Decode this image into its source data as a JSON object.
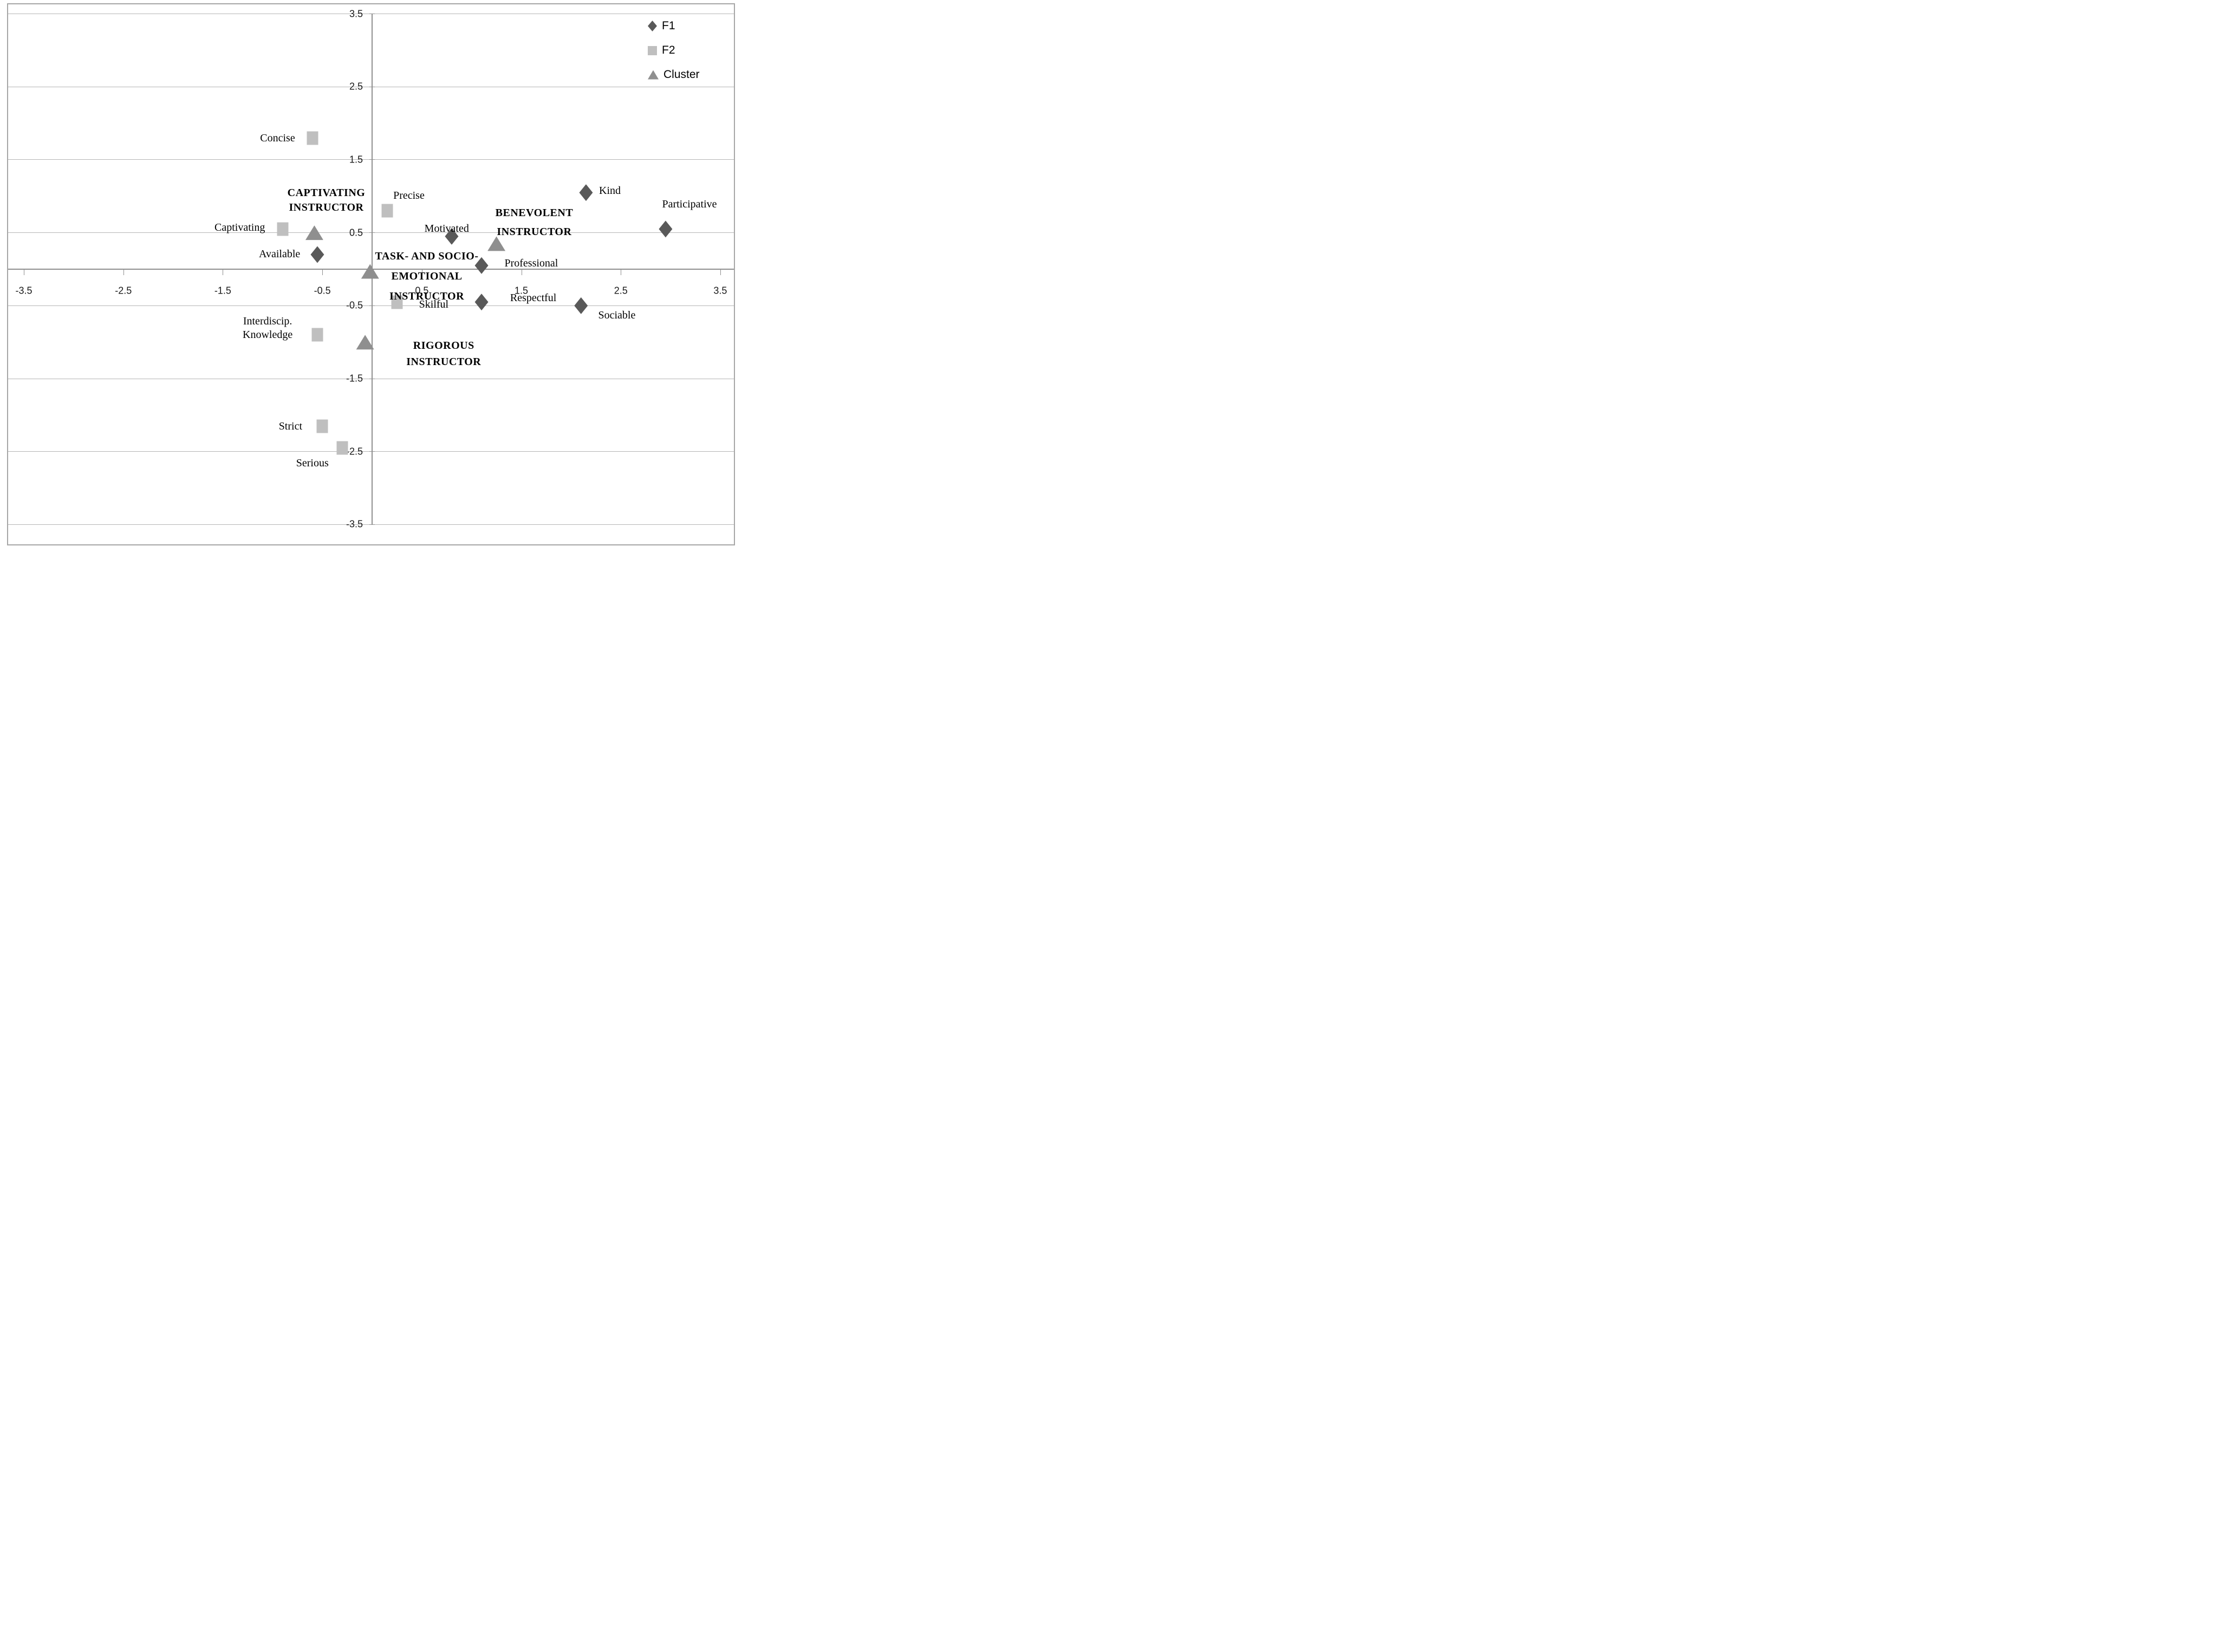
{
  "chart_data": {
    "type": "scatter",
    "title": "",
    "xlabel": "",
    "ylabel": "",
    "xlim": [
      -3.5,
      3.5
    ],
    "ylim": [
      -3.5,
      3.5
    ],
    "xtick_labels": [
      "-3.5",
      "-2.5",
      "-1.5",
      "-0.5",
      "0.5",
      "1.5",
      "2.5",
      "3.5"
    ],
    "ytick_labels": [
      "3.5",
      "2.5",
      "1.5",
      "0.5",
      "-0.5",
      "-1.5",
      "-2.5",
      "-3.5"
    ],
    "grid": "horizontal-only",
    "colors": {
      "f1": "#595959",
      "f2": "#bfbfbf",
      "cluster": "#8f8f8f",
      "gridline": "#b5b5b5",
      "axis": "#8f8f8f",
      "text": "#000000"
    },
    "legend": {
      "position": "top-right"
    },
    "series": [
      {
        "name": "F1",
        "marker": "diamond",
        "color": "#595959",
        "points": [
          {
            "label": "Available",
            "x": -0.55,
            "y": 0.2,
            "label_x": -0.93,
            "label_y": 0.21
          },
          {
            "label": "Kind",
            "x": 2.15,
            "y": 1.05,
            "label_x": 2.39,
            "label_y": 1.08
          },
          {
            "label": "Participative",
            "x": 2.95,
            "y": 0.55,
            "label_x": 3.19,
            "label_y": 0.89
          },
          {
            "label": "Motivated",
            "x": 0.8,
            "y": 0.45,
            "label_x": 0.75,
            "label_y": 0.56
          },
          {
            "label": "Professional",
            "x": 1.1,
            "y": 0.05,
            "label_x": 1.6,
            "label_y": 0.08
          },
          {
            "label": "Respectful",
            "x": 1.1,
            "y": -0.45,
            "label_x": 1.62,
            "label_y": -0.39
          },
          {
            "label": "Sociable",
            "x": 2.1,
            "y": -0.5,
            "label_x": 2.46,
            "label_y": -0.63
          }
        ]
      },
      {
        "name": "F2",
        "marker": "square",
        "color": "#bfbfbf",
        "points": [
          {
            "label": "Concise",
            "x": -0.6,
            "y": 1.8,
            "label_x": -0.95,
            "label_y": 1.8
          },
          {
            "label": "Precise",
            "x": 0.15,
            "y": 0.8,
            "label_x": 0.37,
            "label_y": 1.01
          },
          {
            "label": "Captivating",
            "x": -0.9,
            "y": 0.55,
            "label_x": -1.33,
            "label_y": 0.57
          },
          {
            "label": "Skilful",
            "x": 0.25,
            "y": -0.45,
            "label_x": 0.62,
            "label_y": -0.48
          },
          {
            "label": "Interdiscip. Knowledge",
            "label_lines": [
              "Interdiscip.",
              "Knowledge"
            ],
            "label_line_h": 25,
            "x": -0.55,
            "y": -0.9,
            "label_x": -1.05,
            "label_y": -0.71
          },
          {
            "label": "Strict",
            "x": -0.5,
            "y": -2.15,
            "label_x": -0.82,
            "label_y": -2.15
          },
          {
            "label": "Serious",
            "x": -0.3,
            "y": -2.45,
            "label_x": -0.6,
            "label_y": -2.66
          }
        ]
      },
      {
        "name": "Cluster",
        "marker": "triangle",
        "color": "#8f8f8f",
        "points": [
          {
            "label": "CAPTIVATING INSTRUCTOR",
            "x": -0.58,
            "y": 0.5
          },
          {
            "label": "BENEVOLENT INSTRUCTOR",
            "x": 1.25,
            "y": 0.35
          },
          {
            "label": "TASK- AND SOCIO-EMOTIONAL INSTRUCTOR",
            "x": -0.02,
            "y": -0.03
          },
          {
            "label": "RIGOROUS INSTRUCTOR",
            "x": -0.07,
            "y": -1.0
          }
        ]
      }
    ],
    "annotations": [
      {
        "lines": [
          "CAPTIVATING",
          "INSTRUCTOR"
        ],
        "x": -0.46,
        "y": 1.05,
        "line_h": 27,
        "bold": true
      },
      {
        "lines": [
          "BENEVOLENT",
          "INSTRUCTOR"
        ],
        "x": 1.63,
        "y": 0.77,
        "line_h": 35,
        "bold": true
      },
      {
        "lines": [
          "TASK- AND SOCIO-",
          "EMOTIONAL",
          "INSTRUCTOR"
        ],
        "x": 0.55,
        "y": 0.18,
        "line_h": 37,
        "bold": true
      },
      {
        "lines": [
          "RIGOROUS",
          "INSTRUCTOR"
        ],
        "x": 0.72,
        "y": -1.05,
        "line_h": 30,
        "bold": true
      }
    ]
  }
}
